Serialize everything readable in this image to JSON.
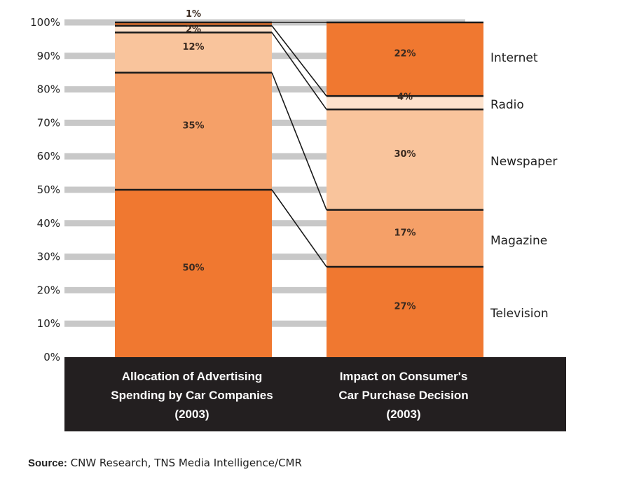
{
  "chart_data": {
    "type": "bar",
    "stacked": true,
    "y_tick_labels": [
      "0%",
      "10%",
      "20%",
      "30%",
      "40%",
      "50%",
      "60%",
      "70%",
      "80%",
      "90%",
      "100%"
    ],
    "ylim": [
      0,
      100
    ],
    "grid": true,
    "bars": [
      {
        "title_lines": [
          "Allocation of Advertising",
          "Spending by Car Companies",
          "(2003)"
        ],
        "segments": [
          {
            "category": "Television",
            "value": 50,
            "label": "50%"
          },
          {
            "category": "Magazine",
            "value": 35,
            "label": "35%"
          },
          {
            "category": "Newspaper",
            "value": 12,
            "label": "12%"
          },
          {
            "category": "Radio",
            "value": 2,
            "label": "2%"
          },
          {
            "category": "Internet",
            "value": 1,
            "label": "1%"
          }
        ]
      },
      {
        "title_lines": [
          "Impact on Consumer's",
          "Car Purchase Decision",
          "(2003)"
        ],
        "segments": [
          {
            "category": "Television",
            "value": 27,
            "label": "27%"
          },
          {
            "category": "Magazine",
            "value": 17,
            "label": "17%"
          },
          {
            "category": "Newspaper",
            "value": 30,
            "label": "30%"
          },
          {
            "category": "Radio",
            "value": 4,
            "label": "4%"
          },
          {
            "category": "Internet",
            "value": 22,
            "label": "22%"
          }
        ]
      }
    ],
    "categories": [
      "Television",
      "Magazine",
      "Newspaper",
      "Radio",
      "Internet"
    ],
    "category_colors": {
      "Television": "#f07830",
      "Magazine": "#f5a068",
      "Newspaper": "#f9c49c",
      "Radio": "#fde2cc",
      "Internet": "#f07830"
    },
    "grid_color": "#c8c8c8",
    "band_color": "#231f20"
  },
  "source": {
    "prefix": "Source:",
    "text": " CNW Research, TNS Media Intelligence/CMR"
  }
}
